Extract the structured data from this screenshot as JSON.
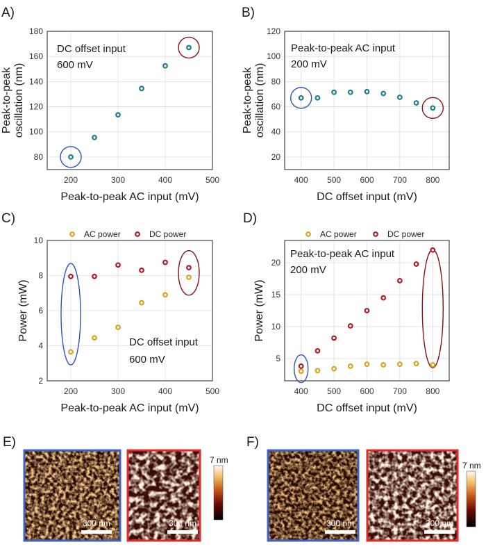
{
  "colors": {
    "teal": "#1b7f87",
    "gold": "#d9a21b",
    "crimson": "#b0182c",
    "ring_blue": "#2f55b5",
    "ring_red": "#8b0f18",
    "frame_blue": "#3c63c0",
    "frame_red": "#e02a2a"
  },
  "chart_data": [
    {
      "panel": "A)",
      "type": "scatter",
      "xlabel": "Peak-to-peak AC input (mV)",
      "ylabel": [
        "Peak-to-peak",
        "oscillation (nm)"
      ],
      "xlim": [
        150,
        500
      ],
      "ylim": [
        70,
        180
      ],
      "xticks": [
        200,
        300,
        400,
        500
      ],
      "yticks": [
        80,
        100,
        120,
        140,
        160,
        180
      ],
      "annotation": [
        "DC offset input",
        "600 mV"
      ],
      "series": [
        {
          "name": "Peak-to-peak oscillation",
          "color": "teal",
          "x": [
            200,
            250,
            300,
            350,
            400,
            450
          ],
          "y": [
            80,
            95.5,
            113.5,
            134.5,
            152.5,
            167
          ]
        }
      ],
      "highlights": [
        {
          "x": 200,
          "y": 80,
          "color": "ring_blue"
        },
        {
          "x": 450,
          "y": 167,
          "color": "ring_red"
        }
      ]
    },
    {
      "panel": "B)",
      "type": "scatter",
      "xlabel": "DC offset input (mV)",
      "ylabel": [
        "Peak-to-peak",
        "oscillation (nm)"
      ],
      "xlim": [
        350,
        850
      ],
      "ylim": [
        10,
        120
      ],
      "xticks": [
        400,
        500,
        600,
        700,
        800
      ],
      "yticks": [
        20,
        40,
        60,
        80,
        100,
        120
      ],
      "annotation": [
        "Peak-to-peak AC input",
        "200 mV"
      ],
      "series": [
        {
          "name": "Peak-to-peak oscillation",
          "color": "teal",
          "x": [
            400,
            450,
            500,
            550,
            600,
            650,
            700,
            750,
            800
          ],
          "y": [
            67,
            67,
            71.5,
            71.5,
            72,
            70.5,
            67.5,
            63,
            59
          ]
        }
      ],
      "highlights": [
        {
          "x": 400,
          "y": 67,
          "color": "ring_blue"
        },
        {
          "x": 800,
          "y": 59,
          "color": "ring_red"
        }
      ]
    },
    {
      "panel": "C)",
      "type": "scatter",
      "xlabel": "Peak-to-peak AC input (mV)",
      "ylabel": [
        "Power (mW)"
      ],
      "xlim": [
        150,
        500
      ],
      "ylim": [
        2,
        10
      ],
      "xticks": [
        200,
        300,
        400,
        500
      ],
      "yticks": [
        2,
        4,
        6,
        8,
        10
      ],
      "annotation": [
        "DC offset input",
        "600 mV"
      ],
      "legend": [
        "AC power",
        "DC power"
      ],
      "series": [
        {
          "name": "AC power",
          "color": "gold",
          "x": [
            200,
            250,
            300,
            350,
            400,
            450
          ],
          "y": [
            3.65,
            4.45,
            5.05,
            6.45,
            6.9,
            7.9
          ]
        },
        {
          "name": "DC power",
          "color": "crimson",
          "x": [
            200,
            250,
            300,
            350,
            400,
            450
          ],
          "y": [
            7.95,
            7.95,
            8.6,
            8.3,
            8.75,
            8.45
          ]
        }
      ],
      "highlights": [
        {
          "x": 200,
          "y": 5.8,
          "color": "ring_blue",
          "tall": true
        },
        {
          "x": 450,
          "y": 8.15,
          "color": "ring_red",
          "tall": true
        }
      ]
    },
    {
      "panel": "D)",
      "type": "scatter",
      "xlabel": "DC offset input (mV)",
      "ylabel": [
        "Power (mW)"
      ],
      "xlim": [
        350,
        850
      ],
      "ylim": [
        1.5,
        23.5
      ],
      "xticks": [
        400,
        500,
        600,
        700,
        800
      ],
      "yticks": [
        5,
        10,
        15,
        20
      ],
      "annotation": [
        "Peak-to-peak AC input",
        "200 mV"
      ],
      "legend": [
        "AC power",
        "DC power"
      ],
      "series": [
        {
          "name": "AC power",
          "color": "gold",
          "x": [
            400,
            450,
            500,
            550,
            600,
            650,
            700,
            750,
            800
          ],
          "y": [
            3.0,
            3.1,
            3.4,
            3.8,
            4.1,
            4.0,
            4.1,
            4.2,
            4.0
          ]
        },
        {
          "name": "DC power",
          "color": "crimson",
          "x": [
            400,
            450,
            500,
            550,
            600,
            650,
            700,
            750,
            800
          ],
          "y": [
            3.8,
            6.2,
            8.2,
            10.1,
            12.5,
            14.5,
            17.2,
            19.8,
            22.0
          ]
        }
      ],
      "highlights": [
        {
          "x": 400,
          "y": 3.4,
          "color": "ring_blue",
          "tall": true
        },
        {
          "x": 800,
          "y": 12.8,
          "color": "ring_red",
          "tall": true
        }
      ]
    }
  ],
  "images": [
    {
      "panel": "E)",
      "colorbar_label": "7 nm",
      "scale_bars": [
        "300 nm",
        "300 nm"
      ],
      "frames": [
        "frame_blue",
        "frame_red"
      ]
    },
    {
      "panel": "F)",
      "colorbar_label": "7 nm",
      "scale_bars": [
        "300 nm",
        "300 nm"
      ],
      "frames": [
        "frame_blue",
        "frame_red"
      ]
    }
  ]
}
